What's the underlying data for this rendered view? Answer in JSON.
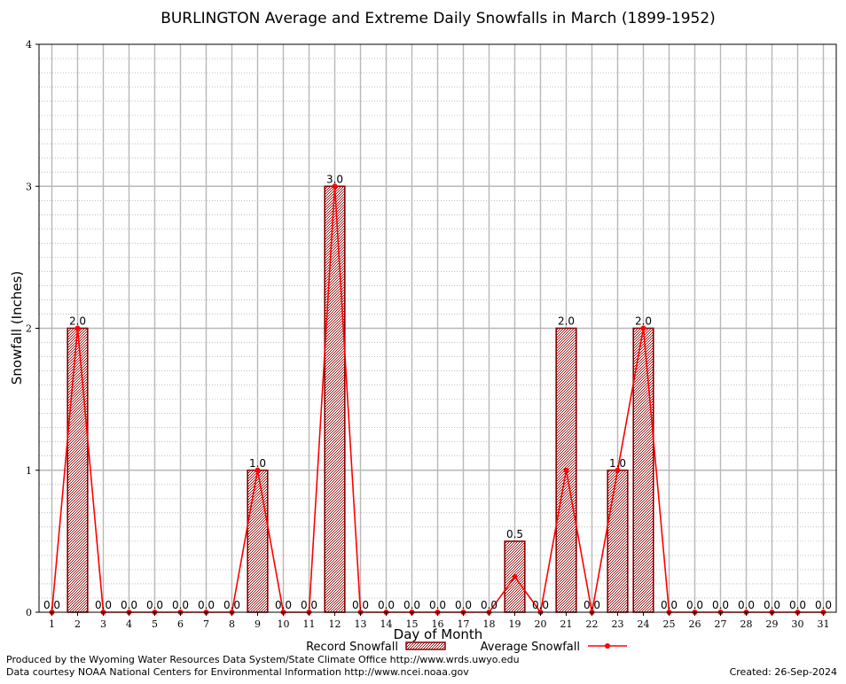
{
  "chart_data": {
    "type": "bar",
    "title": "BURLINGTON Average and Extreme Daily Snowfalls in March (1899-1952)",
    "xlabel": "Day of Month",
    "ylabel": "Snowfall (Inches)",
    "categories": [
      "1",
      "2",
      "3",
      "4",
      "5",
      "6",
      "7",
      "8",
      "9",
      "10",
      "11",
      "12",
      "13",
      "14",
      "15",
      "16",
      "17",
      "18",
      "19",
      "20",
      "21",
      "22",
      "23",
      "24",
      "25",
      "26",
      "27",
      "28",
      "29",
      "30",
      "31"
    ],
    "ylim": [
      0,
      4
    ],
    "yticks": [
      "0",
      "1",
      "2",
      "3",
      "4"
    ],
    "grid": true,
    "legend_position": "bottom",
    "series": [
      {
        "name": "Record Snowfall",
        "kind": "bar",
        "color": "#8b0000",
        "values": [
          0,
          2,
          0,
          0,
          0,
          0,
          0,
          0,
          1,
          0,
          0,
          3,
          0,
          0,
          0,
          0,
          0,
          0,
          0.5,
          0,
          2,
          0,
          1,
          2,
          0,
          0,
          0,
          0,
          0,
          0,
          0
        ],
        "labels": [
          "0.0",
          "2.0",
          "0.0",
          "0.0",
          "0.0",
          "0.0",
          "0.0",
          "0.0",
          "1.0",
          "0.0",
          "0.0",
          "3.0",
          "0.0",
          "0.0",
          "0.0",
          "0.0",
          "0.0",
          "0.0",
          "0.5",
          "0.0",
          "2.0",
          "0.0",
          "1.0",
          "2.0",
          "0.0",
          "0.0",
          "0.0",
          "0.0",
          "0.0",
          "0.0",
          "0.0"
        ]
      },
      {
        "name": "Average Snowfall",
        "kind": "line",
        "color": "#ff0000",
        "values": [
          0,
          2,
          0,
          0,
          0,
          0,
          0,
          0,
          1,
          0,
          0,
          3,
          0,
          0,
          0,
          0,
          0,
          0,
          0.25,
          0,
          1,
          0,
          1,
          2,
          0,
          0,
          0,
          0,
          0,
          0,
          0
        ]
      }
    ]
  },
  "footer": {
    "produced_by": "Produced by the Wyoming Water Resources Data System/State Climate Office http://www.wrds.uwyo.edu",
    "courtesy": "Data courtesy NOAA National Centers for Environmental Information http://www.ncei.noaa.gov",
    "created": "Created:  26-Sep-2024"
  }
}
